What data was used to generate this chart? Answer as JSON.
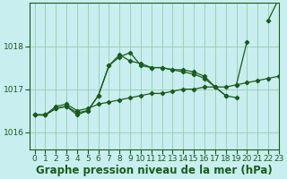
{
  "title": "Graphe pression niveau de la mer (hPa)",
  "bg_color": "#c8eef0",
  "grid_color": "#98ccaa",
  "line_color": "#1a5c1a",
  "xlim": [
    -0.5,
    23
  ],
  "ylim": [
    1015.6,
    1019.0
  ],
  "yticks": [
    1016,
    1017,
    1018
  ],
  "xticks": [
    0,
    1,
    2,
    3,
    4,
    5,
    6,
    7,
    8,
    9,
    10,
    11,
    12,
    13,
    14,
    15,
    16,
    17,
    18,
    19,
    20,
    21,
    22,
    23
  ],
  "series": [
    {
      "x": [
        0,
        1,
        2,
        3,
        4,
        5,
        6,
        7,
        8,
        9,
        10,
        11,
        12,
        13,
        14,
        15,
        16,
        17,
        18,
        19,
        20,
        21,
        22,
        23
      ],
      "y": [
        1016.4,
        1016.4,
        1016.6,
        1016.65,
        1016.5,
        1016.55,
        1016.65,
        1016.7,
        1016.75,
        1016.8,
        1016.85,
        1016.9,
        1016.9,
        1016.95,
        1017.0,
        1017.0,
        1017.05,
        1017.05,
        1017.05,
        1017.1,
        1017.15,
        1017.2,
        1017.25,
        1017.3
      ]
    },
    {
      "x": [
        0,
        1,
        2,
        3,
        4,
        5,
        6,
        7,
        8,
        9,
        10,
        11,
        12,
        13,
        14,
        15,
        16,
        17,
        18,
        19,
        20,
        21,
        22,
        23
      ],
      "y": [
        1016.4,
        1016.4,
        1016.55,
        1016.6,
        1016.45,
        1016.5,
        1016.85,
        1017.55,
        1017.8,
        1017.65,
        1017.6,
        1017.5,
        1017.5,
        1017.45,
        1017.45,
        1017.4,
        1017.3,
        1017.05,
        1016.85,
        1016.8,
        null,
        null,
        null,
        null
      ]
    },
    {
      "x": [
        0,
        1,
        2,
        3,
        4,
        5,
        6,
        7,
        8,
        9,
        10,
        11,
        12,
        13,
        14,
        15,
        16,
        17,
        18,
        19,
        20,
        21,
        22,
        23
      ],
      "y": [
        1016.4,
        1016.4,
        1016.55,
        1016.6,
        1016.4,
        1016.5,
        1016.85,
        1017.55,
        1017.75,
        1017.85,
        1017.55,
        1017.5,
        1017.5,
        1017.45,
        1017.4,
        1017.35,
        1017.25,
        1017.05,
        1016.85,
        null,
        null,
        null,
        null,
        null
      ]
    },
    {
      "x": [
        0,
        1,
        2,
        3,
        4,
        5,
        6,
        7,
        8,
        9,
        10,
        11,
        12,
        13,
        14,
        15,
        16,
        17,
        18,
        19,
        20,
        21,
        22,
        23
      ],
      "y": [
        1016.4,
        1016.4,
        null,
        null,
        null,
        null,
        null,
        null,
        null,
        null,
        null,
        null,
        null,
        null,
        null,
        null,
        null,
        null,
        null,
        1017.1,
        1018.1,
        null,
        1018.6,
        1019.1
      ]
    }
  ],
  "title_fontsize": 8.5,
  "tick_fontsize": 6.5
}
